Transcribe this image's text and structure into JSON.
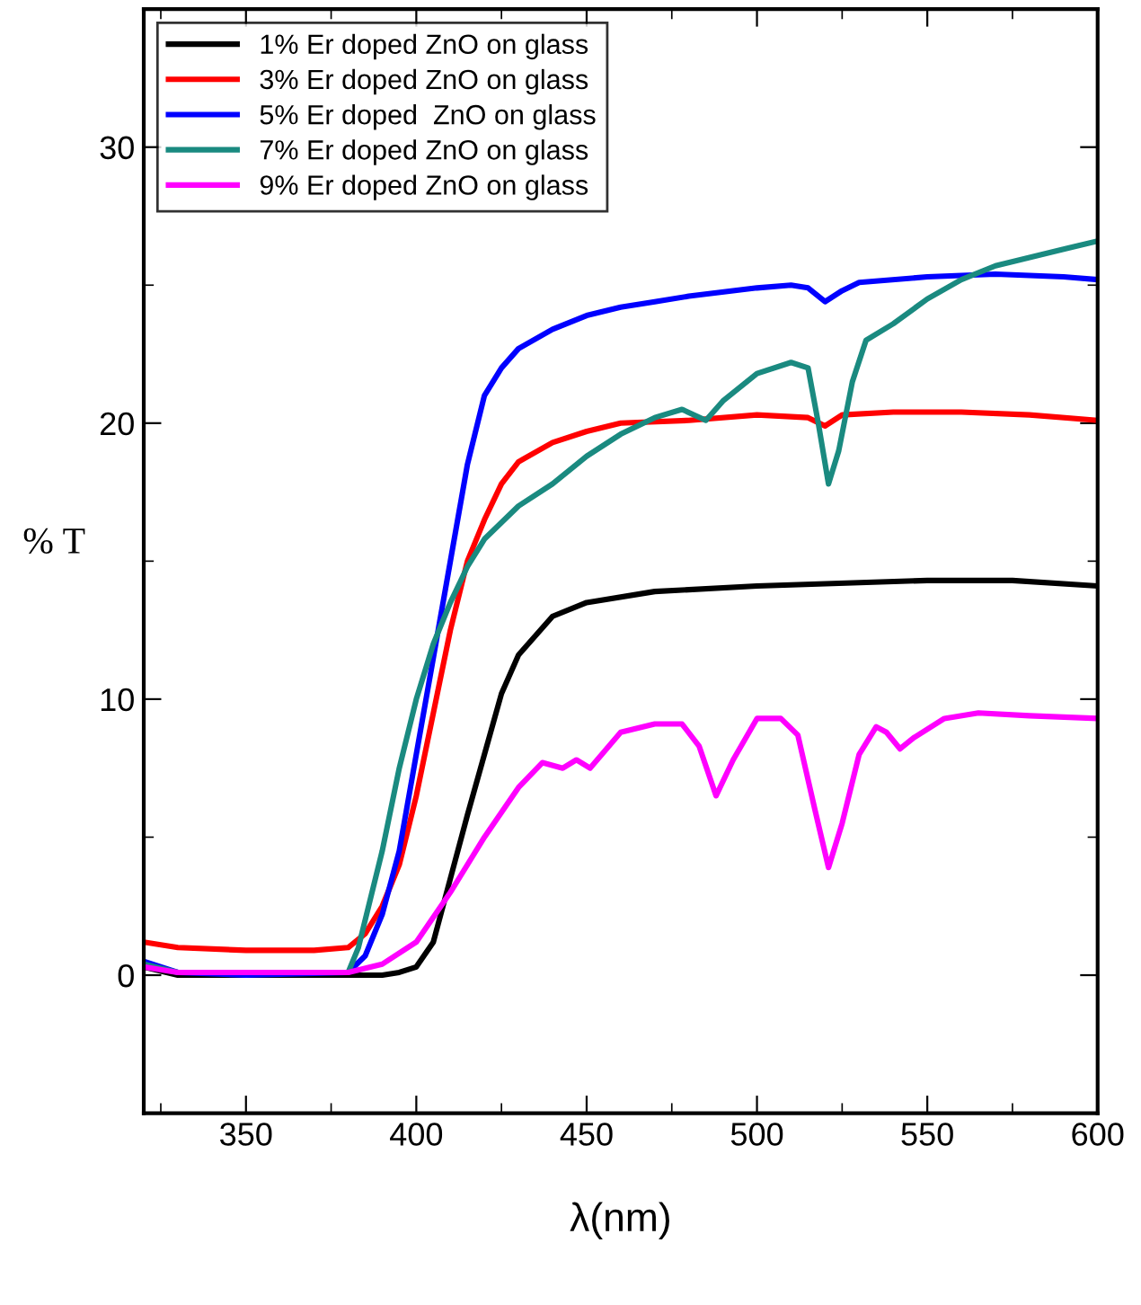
{
  "chart_data": {
    "type": "line",
    "xlabel": "λ(nm)",
    "ylabel": "% T",
    "xlim": [
      320,
      600
    ],
    "xticks": [
      350,
      400,
      450,
      500,
      550,
      600
    ],
    "ylim": [
      -5,
      35
    ],
    "yticks": [
      0,
      10,
      20,
      30
    ],
    "grid": false,
    "legend": "top left",
    "marker": "none",
    "line_style": "solid",
    "series": [
      {
        "name": "1% Er doped ZnO on glass",
        "color": "#000000",
        "x": [
          320,
          330,
          350,
          370,
          390,
          395,
          400,
          405,
          410,
          415,
          420,
          425,
          430,
          440,
          450,
          470,
          500,
          550,
          575,
          600
        ],
        "values": [
          0.3,
          0.0,
          0.0,
          0.0,
          0.0,
          0.1,
          0.3,
          1.2,
          3.5,
          5.8,
          8.0,
          10.2,
          11.6,
          13.0,
          13.5,
          13.9,
          14.1,
          14.3,
          14.3,
          14.1
        ]
      },
      {
        "name": "3% Er doped ZnO on glass",
        "color": "#ff0000",
        "x": [
          320,
          330,
          350,
          370,
          380,
          385,
          390,
          395,
          400,
          405,
          410,
          415,
          420,
          425,
          430,
          440,
          450,
          460,
          480,
          500,
          515,
          520,
          525,
          540,
          560,
          580,
          600
        ],
        "values": [
          1.2,
          1.0,
          0.9,
          0.9,
          1.0,
          1.5,
          2.5,
          4.0,
          6.5,
          9.5,
          12.5,
          15.0,
          16.5,
          17.8,
          18.6,
          19.3,
          19.7,
          20.0,
          20.1,
          20.3,
          20.2,
          19.9,
          20.3,
          20.4,
          20.4,
          20.3,
          20.1
        ]
      },
      {
        "name": "5% Er doped  ZnO on glass",
        "color": "#0000ff",
        "x": [
          320,
          330,
          350,
          380,
          385,
          390,
          395,
          400,
          405,
          410,
          415,
          420,
          425,
          430,
          440,
          450,
          460,
          470,
          480,
          500,
          510,
          515,
          520,
          525,
          530,
          550,
          570,
          590,
          600
        ],
        "values": [
          0.5,
          0.1,
          0.0,
          0.1,
          0.7,
          2.2,
          4.5,
          8.0,
          11.5,
          15.0,
          18.5,
          21.0,
          22.0,
          22.7,
          23.4,
          23.9,
          24.2,
          24.4,
          24.6,
          24.9,
          25.0,
          24.9,
          24.4,
          24.8,
          25.1,
          25.3,
          25.4,
          25.3,
          25.2
        ]
      },
      {
        "name": "7% Er doped ZnO on glass",
        "color": "#1a8a80",
        "x": [
          320,
          330,
          380,
          383,
          390,
          395,
          400,
          405,
          410,
          415,
          420,
          430,
          440,
          450,
          460,
          470,
          478,
          485,
          490,
          500,
          510,
          515,
          518,
          521,
          524,
          528,
          532,
          540,
          550,
          560,
          570,
          580,
          590,
          600
        ],
        "values": [
          0.4,
          0.1,
          0.1,
          1.0,
          4.5,
          7.5,
          10.0,
          12.0,
          13.5,
          14.8,
          15.8,
          17.0,
          17.8,
          18.8,
          19.6,
          20.2,
          20.5,
          20.1,
          20.8,
          21.8,
          22.2,
          22.0,
          20.0,
          17.8,
          19.0,
          21.5,
          23.0,
          23.6,
          24.5,
          25.2,
          25.7,
          26.0,
          26.3,
          26.6
        ]
      },
      {
        "name": "9% Er doped ZnO on glass",
        "color": "#ff00ff",
        "x": [
          320,
          330,
          380,
          390,
          400,
          410,
          420,
          430,
          437,
          443,
          447,
          451,
          460,
          470,
          478,
          483,
          488,
          493,
          500,
          507,
          512,
          517,
          521,
          525,
          530,
          535,
          538,
          542,
          546,
          555,
          565,
          580,
          600
        ],
        "values": [
          0.3,
          0.1,
          0.1,
          0.4,
          1.2,
          3.0,
          5.0,
          6.8,
          7.7,
          7.5,
          7.8,
          7.5,
          8.8,
          9.1,
          9.1,
          8.3,
          6.5,
          7.8,
          9.3,
          9.3,
          8.7,
          6.0,
          3.9,
          5.5,
          8.0,
          9.0,
          8.8,
          8.2,
          8.6,
          9.3,
          9.5,
          9.4,
          9.3
        ]
      }
    ]
  }
}
